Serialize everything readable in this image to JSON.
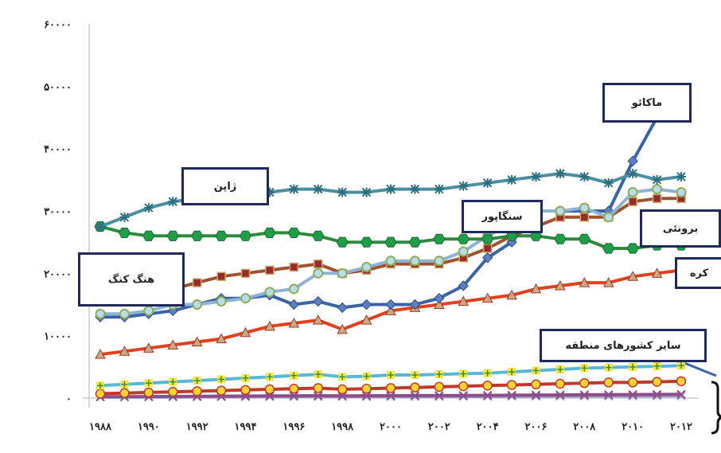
{
  "chart_data": {
    "type": "line",
    "title": "",
    "xlabel": "",
    "ylabel": "",
    "ylim": [
      0,
      60000
    ],
    "yticks": [
      0,
      10000,
      20000,
      30000,
      40000,
      50000,
      60000
    ],
    "ytick_labels": [
      "۰",
      "۱۰۰۰۰",
      "۲۰۰۰۰",
      "۳۰۰۰۰",
      "۴۰۰۰۰",
      "۵۰۰۰۰",
      "۶۰۰۰۰"
    ],
    "x": [
      1988,
      1989,
      1990,
      1991,
      1992,
      1993,
      1994,
      1995,
      1996,
      1997,
      1998,
      1999,
      2000,
      2001,
      2002,
      2003,
      2004,
      2005,
      2006,
      2007,
      2008,
      2009,
      2010,
      2011,
      2012
    ],
    "xtick_values": [
      1988,
      1990,
      1992,
      1994,
      1996,
      1998,
      2000,
      2002,
      2004,
      2006,
      2008,
      2010,
      2012
    ],
    "xtick_labels": [
      "۱۹۸۸",
      "۱۹۹۰",
      "۱۹۹۲",
      "۱۹۹۴",
      "۱۹۹۶",
      "۱۹۹۸",
      "۲۰۰۰",
      "۲۰۰۲",
      "۲۰۰۴",
      "۲۰۰۶",
      "۲۰۰۸",
      "۲۰۱۰",
      "۲۰۱۲"
    ],
    "grid": false,
    "series": [
      {
        "name": "ژاپن",
        "color": "#4a8fa0",
        "marker": "star",
        "values": [
          27500,
          29000,
          30500,
          31500,
          32000,
          32000,
          32500,
          33000,
          33500,
          33500,
          33000,
          33000,
          33500,
          33500,
          33500,
          34000,
          34500,
          35000,
          35500,
          36000,
          35500,
          34500,
          36000,
          35000,
          35500
        ]
      },
      {
        "name": "برونئی",
        "color": "#2e8b3e",
        "marker": "hex",
        "values": [
          27500,
          26500,
          26000,
          26000,
          26000,
          26000,
          26000,
          26500,
          26500,
          26000,
          25000,
          25000,
          25000,
          25000,
          25500,
          25500,
          25500,
          26000,
          26000,
          25500,
          25500,
          24000,
          24000,
          24500,
          24500
        ]
      },
      {
        "name": "سنگاپور",
        "color": "#8bb4d6",
        "marker": "circle",
        "values": [
          13500,
          13500,
          14000,
          15000,
          15000,
          15500,
          16000,
          17000,
          17500,
          20000,
          20000,
          21000,
          22000,
          22000,
          22000,
          23500,
          26000,
          28000,
          30000,
          30000,
          30500,
          29000,
          33000,
          33500,
          33000
        ]
      },
      {
        "name": "هنگ کنگ",
        "color": "#a0522d",
        "marker": "square",
        "values": [
          16000,
          16000,
          17000,
          17500,
          18500,
          19500,
          20000,
          20500,
          21000,
          21500,
          20000,
          20500,
          21500,
          21500,
          21500,
          22500,
          24000,
          26000,
          27500,
          29000,
          29000,
          29000,
          31500,
          32000,
          32000
        ]
      },
      {
        "name": "ماکائو",
        "color": "#3a63a8",
        "marker": "diamond",
        "values": [
          13000,
          13000,
          13500,
          14000,
          15000,
          16000,
          16000,
          16500,
          15000,
          15500,
          14500,
          15000,
          15000,
          15000,
          16000,
          18000,
          22500,
          25000,
          30000,
          30000,
          30000,
          30000,
          38000,
          45000,
          49000
        ]
      },
      {
        "name": "کره",
        "color": "#e0401e",
        "marker": "triangle",
        "values": [
          7000,
          7500,
          8000,
          8500,
          9000,
          9500,
          10500,
          11500,
          12000,
          12500,
          11000,
          12500,
          14000,
          14500,
          15000,
          15500,
          16000,
          16500,
          17500,
          18000,
          18500,
          18500,
          19500,
          20000,
          20500
        ]
      },
      {
        "name": "",
        "color": "#5bb7d6",
        "marker": "plus",
        "values": [
          2000,
          2200,
          2400,
          2600,
          2800,
          3000,
          3200,
          3400,
          3600,
          3800,
          3400,
          3500,
          3700,
          3700,
          3800,
          3900,
          4000,
          4200,
          4400,
          4600,
          4800,
          4900,
          5000,
          5100,
          5200
        ]
      },
      {
        "name": "",
        "color": "#c0392b",
        "marker": "yellow-circle",
        "values": [
          700,
          800,
          900,
          1000,
          1100,
          1200,
          1300,
          1400,
          1500,
          1600,
          1400,
          1500,
          1600,
          1700,
          1800,
          1900,
          2000,
          2100,
          2200,
          2300,
          2400,
          2500,
          2500,
          2600,
          2700
        ]
      },
      {
        "name": "",
        "color": "#8e4d8a",
        "marker": "x",
        "values": [
          200,
          220,
          240,
          260,
          280,
          300,
          320,
          340,
          360,
          380,
          360,
          370,
          380,
          390,
          400,
          420,
          440,
          460,
          480,
          500,
          520,
          540,
          560,
          580,
          600
        ]
      },
      {
        "name": "",
        "color": "#9aa0c8",
        "marker": "x",
        "values": [
          150,
          160,
          170,
          180,
          190,
          200,
          210,
          220,
          230,
          240,
          230,
          235,
          240,
          245,
          250,
          260,
          270,
          280,
          290,
          300,
          310,
          320,
          330,
          340,
          350
        ]
      }
    ],
    "annotations": [
      {
        "text": "ژاپن",
        "boxed": true
      },
      {
        "text": "ماکائو",
        "boxed": true
      },
      {
        "text": "سنگاپور",
        "boxed": true
      },
      {
        "text": "برونئی",
        "boxed": true
      },
      {
        "text": "هنگ کنگ",
        "boxed": true
      },
      {
        "text": "کره",
        "boxed": true
      },
      {
        "text": "سایر کشورهای منطقه",
        "boxed": true
      }
    ]
  },
  "page_title": ""
}
